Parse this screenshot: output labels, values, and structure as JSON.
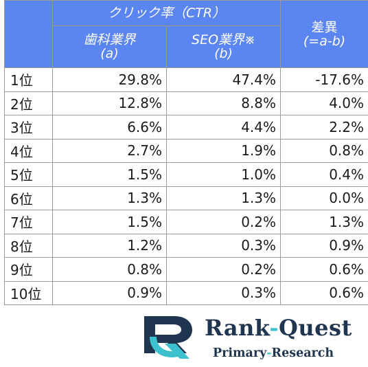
{
  "header": {
    "ctr_title": "クリック率（CTR）",
    "col_a_title": "歯科業界",
    "col_a_sub": "(a)",
    "col_b_title": "SEO業界※",
    "col_b_sub": "(b)",
    "diff_title": "差異",
    "diff_sub": "(=a-b)"
  },
  "rows": [
    {
      "rank": "1位",
      "a": "29.8%",
      "b": "47.4%",
      "diff": "-17.6%"
    },
    {
      "rank": "2位",
      "a": "12.8%",
      "b": "8.8%",
      "diff": "4.0%"
    },
    {
      "rank": "3位",
      "a": "6.6%",
      "b": "4.4%",
      "diff": "2.2%"
    },
    {
      "rank": "4位",
      "a": "2.7%",
      "b": "1.9%",
      "diff": "0.8%"
    },
    {
      "rank": "5位",
      "a": "1.5%",
      "b": "1.0%",
      "diff": "0.4%"
    },
    {
      "rank": "6位",
      "a": "1.3%",
      "b": "1.3%",
      "diff": "0.0%"
    },
    {
      "rank": "7位",
      "a": "1.5%",
      "b": "0.2%",
      "diff": "1.3%"
    },
    {
      "rank": "8位",
      "a": "1.2%",
      "b": "0.3%",
      "diff": "0.9%"
    },
    {
      "rank": "9位",
      "a": "0.8%",
      "b": "0.2%",
      "diff": "0.6%"
    },
    {
      "rank": "10位",
      "a": "0.9%",
      "b": "0.3%",
      "diff": "0.6%"
    }
  ],
  "logo": {
    "brand_left": "Rank",
    "brand_dash": "-",
    "brand_right": "Quest",
    "tagline_left": "Primary",
    "tagline_dash": "-",
    "tagline_right": "Research",
    "mark_icon": "rank-quest-logo-icon",
    "navy": "#1f3550",
    "teal": "#3ec1cf"
  }
}
